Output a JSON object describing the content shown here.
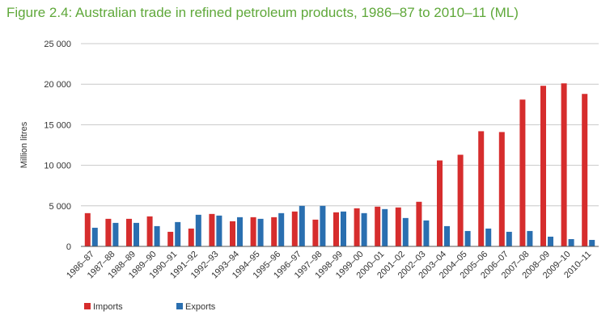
{
  "chart_data": {
    "type": "bar",
    "title": "Figure 2.4: Australian trade in refined petroleum products, 1986–87 to 2010–11 (ML)",
    "xlabel": "",
    "ylabel": "Million litres",
    "ylim": [
      0,
      25000
    ],
    "yticks": [
      0,
      5000,
      10000,
      15000,
      20000,
      25000
    ],
    "ytick_labels": [
      "0",
      "5 000",
      "10 000",
      "15 000",
      "20 000",
      "25 000"
    ],
    "grid": "horizontal",
    "legend_position": "bottom",
    "categories": [
      "1986–87",
      "1987–88",
      "1988–89",
      "1989–90",
      "1990–91",
      "1991–92",
      "1992–93",
      "1993–94",
      "1994–95",
      "1995–96",
      "1996–97",
      "1997–98",
      "1998–99",
      "1999–00",
      "2000–01",
      "2001–02",
      "2002–03",
      "2003–04",
      "2004–05",
      "2005–06",
      "2006–07",
      "2007–08",
      "2008–09",
      "2009–10",
      "2010–11"
    ],
    "series": [
      {
        "name": "Imports",
        "color": "#d62d2d",
        "values": [
          4100,
          3400,
          3400,
          3700,
          1800,
          2200,
          4000,
          3100,
          3600,
          3600,
          4300,
          3300,
          4200,
          4700,
          4900,
          4800,
          5500,
          10600,
          11300,
          14200,
          14100,
          18100,
          19800,
          20100,
          18800
        ]
      },
      {
        "name": "Exports",
        "color": "#2a6fb0",
        "values": [
          2300,
          2900,
          2900,
          2500,
          3000,
          3900,
          3800,
          3600,
          3400,
          4100,
          5000,
          5000,
          4300,
          4100,
          4600,
          3500,
          3200,
          2500,
          1900,
          2200,
          1800,
          1900,
          1200,
          900,
          800
        ]
      }
    ]
  }
}
